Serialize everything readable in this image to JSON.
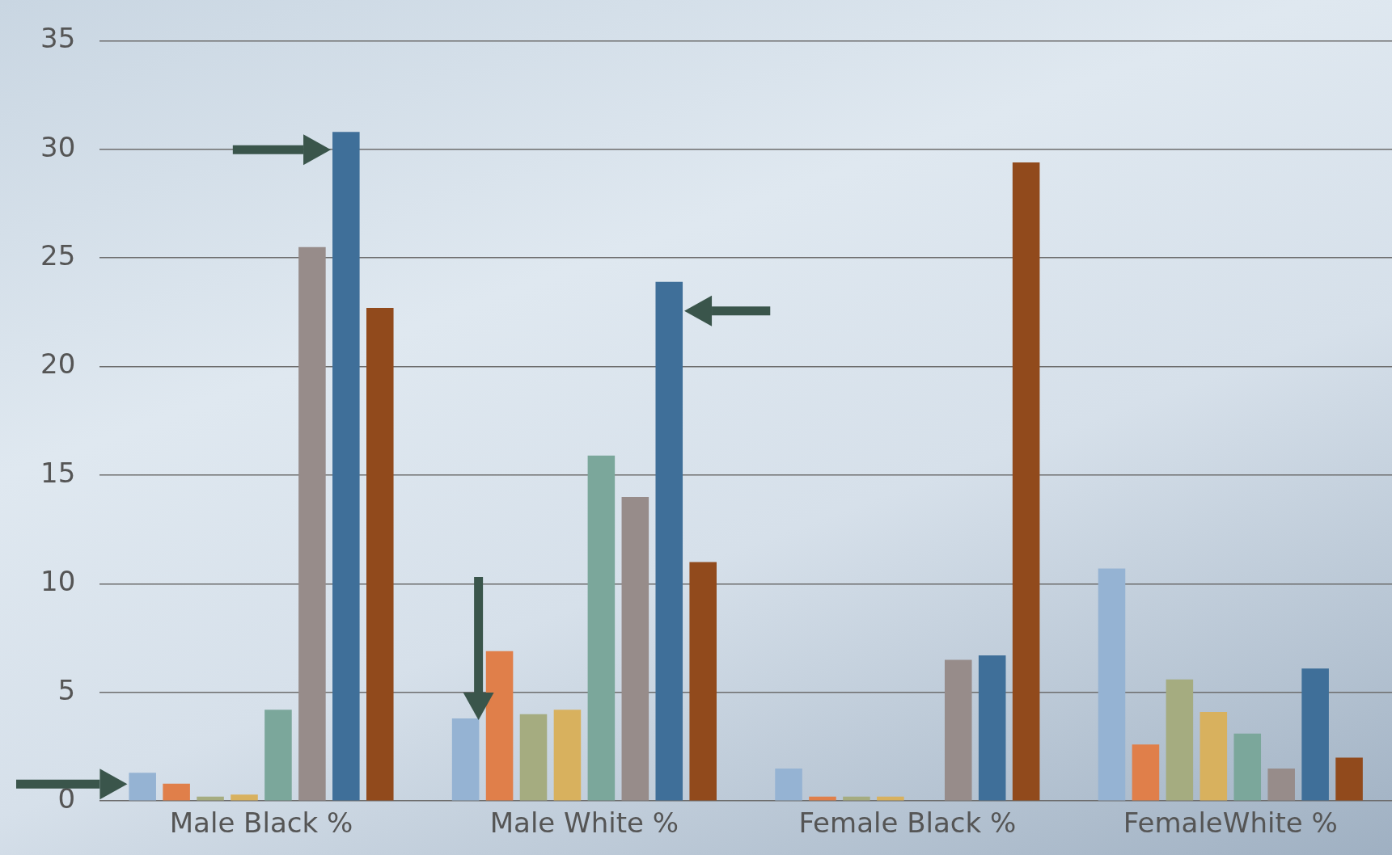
{
  "chart_data": {
    "type": "bar",
    "categories": [
      "Male Black %",
      "Male White %",
      "Female Black %",
      "FemaleWhite %"
    ],
    "series": [
      {
        "color": "#95b3d3",
        "values": [
          1.3,
          3.8,
          1.5,
          10.7
        ]
      },
      {
        "color": "#e07f4a",
        "values": [
          0.8,
          6.9,
          0.2,
          2.6
        ]
      },
      {
        "color": "#a5ac80",
        "values": [
          0.2,
          4.0,
          0.2,
          5.6
        ]
      },
      {
        "color": "#d8b15e",
        "values": [
          0.3,
          4.2,
          0.2,
          4.1
        ]
      },
      {
        "color": "#7ba79b",
        "values": [
          4.2,
          15.9,
          0,
          3.1
        ]
      },
      {
        "color": "#978c8a",
        "values": [
          25.5,
          14.0,
          6.5,
          1.5
        ]
      },
      {
        "color": "#3f6f99",
        "values": [
          30.8,
          23.9,
          6.7,
          6.1
        ]
      },
      {
        "color": "#914a1c",
        "values": [
          22.7,
          11.0,
          29.4,
          2.0
        ]
      }
    ],
    "ylim": [
      0,
      35
    ],
    "yticks": [
      0,
      5,
      10,
      15,
      20,
      25,
      30,
      35
    ],
    "grid": "y",
    "legend": false
  }
}
